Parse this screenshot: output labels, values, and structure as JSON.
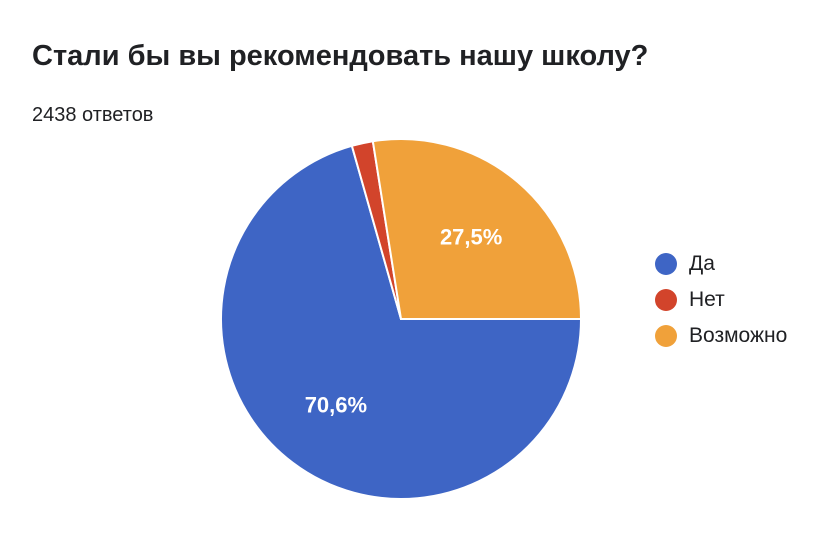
{
  "header": {
    "title": "Стали бы вы рекомендовать нашу школу?",
    "responses": "2438 ответов"
  },
  "chart_data": {
    "type": "pie",
    "title": "Стали бы вы рекомендовать нашу школу?",
    "categories": [
      "Да",
      "Нет",
      "Возможно"
    ],
    "values": [
      70.6,
      1.9,
      27.5
    ],
    "value_labels": [
      "70,6%",
      "",
      "27,5%"
    ],
    "colors": [
      "#3e65c5",
      "#d2442b",
      "#f0a13a"
    ],
    "legend": "right"
  }
}
